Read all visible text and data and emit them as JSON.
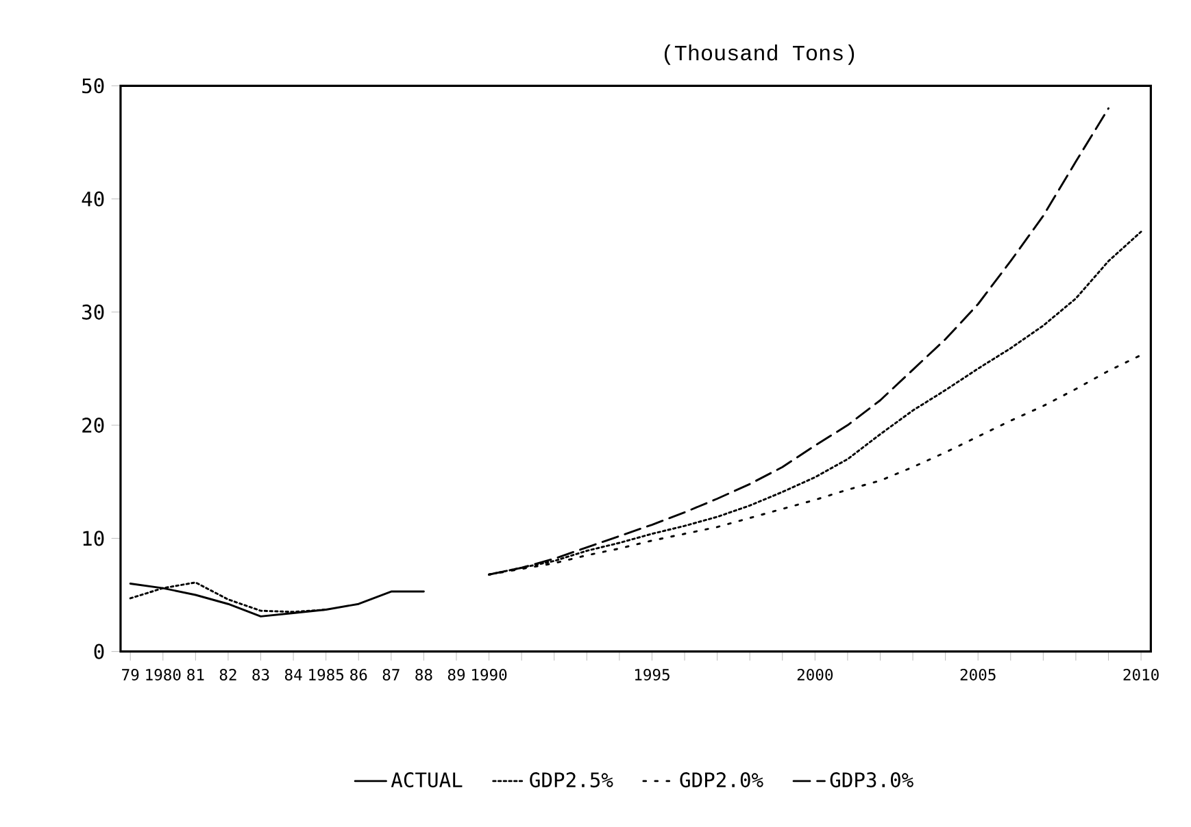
{
  "chart_data": {
    "type": "line",
    "ylabel": "(Thousand Tons)",
    "x": [
      1979,
      1980,
      1981,
      1982,
      1983,
      1984,
      1985,
      1986,
      1987,
      1988,
      1989,
      1990,
      1991,
      1992,
      1993,
      1994,
      1995,
      1996,
      1997,
      1998,
      1999,
      2000,
      2001,
      2002,
      2003,
      2004,
      2005,
      2006,
      2007,
      2008,
      2009,
      2010
    ],
    "series": [
      {
        "name": "ACTUAL",
        "color": "#000000",
        "line_style": "solid",
        "values": [
          6.0,
          5.6,
          5.0,
          4.2,
          3.1,
          3.4,
          3.7,
          4.2,
          5.3,
          5.3,
          null,
          null,
          null,
          null,
          null,
          null,
          null,
          null,
          null,
          null,
          null,
          null,
          null,
          null,
          null,
          null,
          null,
          null,
          null,
          null,
          null,
          null
        ]
      },
      {
        "name": "GDP2.5%",
        "color": "#000000",
        "line_style": "dotted",
        "values": [
          4.7,
          5.6,
          6.1,
          4.6,
          3.6,
          3.5,
          3.7,
          null,
          null,
          null,
          null,
          6.8,
          7.4,
          8.0,
          8.9,
          9.6,
          10.4,
          11.1,
          11.9,
          12.9,
          14.1,
          15.4,
          17.0,
          19.2,
          21.3,
          23.1,
          25.0,
          26.8,
          28.8,
          31.2,
          34.5,
          37.1
        ]
      },
      {
        "name": "GDP2.0%",
        "color": "#000000",
        "line_style": "dotted",
        "values": [
          null,
          null,
          null,
          null,
          null,
          null,
          null,
          null,
          null,
          null,
          null,
          6.8,
          7.3,
          7.8,
          8.5,
          9.1,
          9.8,
          10.4,
          11.0,
          11.8,
          12.6,
          13.4,
          14.3,
          15.1,
          16.3,
          17.6,
          19.0,
          20.4,
          21.7,
          23.2,
          24.8,
          26.2
        ]
      },
      {
        "name": "GDP3.0%",
        "color": "#000000",
        "line_style": "dashed",
        "values": [
          null,
          null,
          null,
          null,
          null,
          null,
          null,
          null,
          null,
          null,
          null,
          6.8,
          7.4,
          8.2,
          9.2,
          10.2,
          11.2,
          12.3,
          13.5,
          14.8,
          16.3,
          18.2,
          20.0,
          22.2,
          24.9,
          27.6,
          30.7,
          34.5,
          38.5,
          43.3,
          48.0,
          null
        ]
      }
    ],
    "xlim": [
      1978.7,
      2010.3
    ],
    "xticks": [
      {
        "value": 1979,
        "label": "79"
      },
      {
        "value": 1980,
        "label": "1980"
      },
      {
        "value": 1981,
        "label": "81"
      },
      {
        "value": 1982,
        "label": "82"
      },
      {
        "value": 1983,
        "label": "83"
      },
      {
        "value": 1984,
        "label": "84"
      },
      {
        "value": 1985,
        "label": "1985"
      },
      {
        "value": 1986,
        "label": "86"
      },
      {
        "value": 1987,
        "label": "87"
      },
      {
        "value": 1988,
        "label": "88"
      },
      {
        "value": 1989,
        "label": "89"
      },
      {
        "value": 1990,
        "label": "1990"
      },
      {
        "value": 1991,
        "label": null
      },
      {
        "value": 1992,
        "label": null
      },
      {
        "value": 1993,
        "label": null
      },
      {
        "value": 1994,
        "label": null
      },
      {
        "value": 1995,
        "label": "1995"
      },
      {
        "value": 1996,
        "label": null
      },
      {
        "value": 1997,
        "label": null
      },
      {
        "value": 1998,
        "label": null
      },
      {
        "value": 1999,
        "label": null
      },
      {
        "value": 2000,
        "label": "2000"
      },
      {
        "value": 2001,
        "label": null
      },
      {
        "value": 2002,
        "label": null
      },
      {
        "value": 2003,
        "label": null
      },
      {
        "value": 2004,
        "label": null
      },
      {
        "value": 2005,
        "label": "2005"
      },
      {
        "value": 2006,
        "label": null
      },
      {
        "value": 2007,
        "label": null
      },
      {
        "value": 2008,
        "label": null
      },
      {
        "value": 2009,
        "label": null
      },
      {
        "value": 2010,
        "label": "2010"
      }
    ],
    "ylim": [
      0,
      50
    ],
    "yticks": [
      0,
      10,
      20,
      30,
      40,
      50
    ],
    "grid": false,
    "legend": "bottom",
    "marker": "none"
  }
}
